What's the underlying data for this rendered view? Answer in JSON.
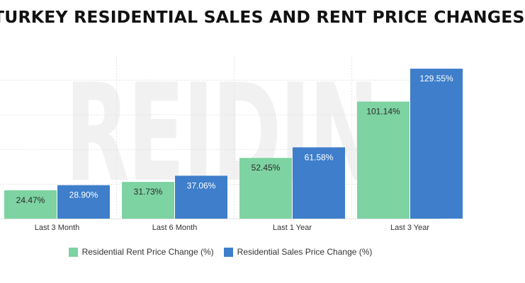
{
  "title": "TURKEY RESIDENTIAL SALES AND RENT PRICE CHANGES",
  "watermark": "REIDIN",
  "chart_data": {
    "type": "bar",
    "title": "TURKEY RESIDENTIAL SALES AND RENT PRICE CHANGES",
    "xlabel": "",
    "ylabel": "",
    "categories": [
      "Last 3 Month",
      "Last 6 Month",
      "Last 1 Year",
      "Last 3 Year"
    ],
    "series": [
      {
        "name": "Residential Rent Price Change (%)",
        "values": [
          24.47,
          31.73,
          52.45,
          101.14
        ],
        "labels": [
          "24.47%",
          "31.73%",
          "52.45%",
          "101.14%"
        ],
        "color": "#7dd3a1"
      },
      {
        "name": "Residential Sales Price Change (%)",
        "values": [
          28.9,
          37.06,
          61.58,
          129.55
        ],
        "labels": [
          "28.90%",
          "37.06%",
          "61.58%",
          "129.55%"
        ],
        "color": "#3e7ecb"
      }
    ],
    "ylim": [
      0,
      140
    ],
    "grid": true,
    "legend_position": "bottom"
  }
}
